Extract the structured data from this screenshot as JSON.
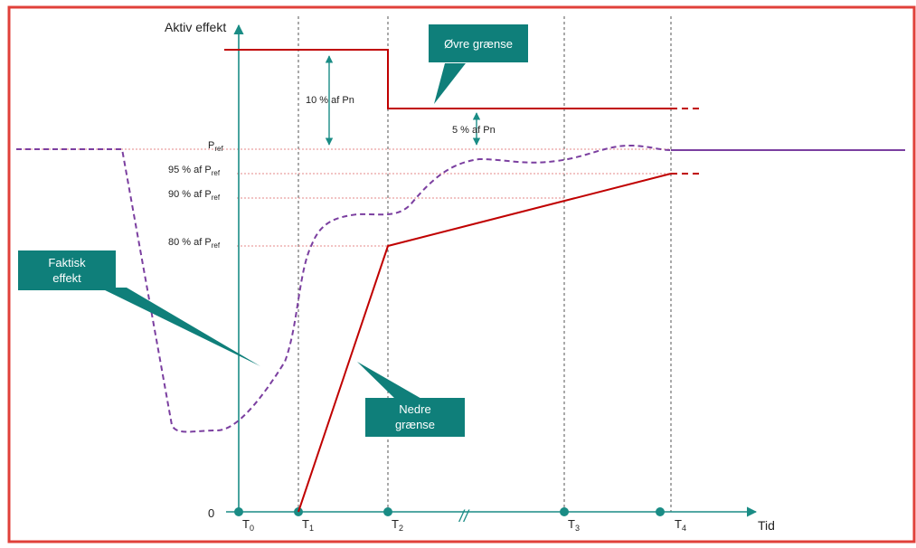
{
  "diagram": {
    "y_axis_label": "Aktiv effekt",
    "x_axis_label": "Tid",
    "origin_label": "0",
    "time_marks": [
      {
        "main": "T",
        "sub": "0"
      },
      {
        "main": "T",
        "sub": "1"
      },
      {
        "main": "T",
        "sub": "2"
      },
      {
        "main": "T",
        "sub": "3"
      },
      {
        "main": "T",
        "sub": "4"
      }
    ],
    "levels": [
      {
        "main": "P",
        "sub": "ref"
      },
      {
        "main": "95 % af P",
        "sub": "ref"
      },
      {
        "main": "90 % af P",
        "sub": "ref"
      },
      {
        "main": "80 % af P",
        "sub": "ref"
      }
    ],
    "upper_margin_label": "10 % af Pn",
    "lower_margin_label": "5 % af Pn",
    "callouts": {
      "upper": "Øvre grænse",
      "actual_line1": "Faktisk",
      "actual_line2": "effekt",
      "lower_line1": "Nedre",
      "lower_line2": "grænse"
    },
    "break_mark": "//",
    "colors": {
      "frame": "#e0403a",
      "axis": "#1a8c85",
      "callout": "#0f7f7a",
      "limit": "#c00000",
      "actual": "#7b3fa0",
      "guide": "#e58a8a",
      "dashed_vertical": "#555555"
    }
  }
}
